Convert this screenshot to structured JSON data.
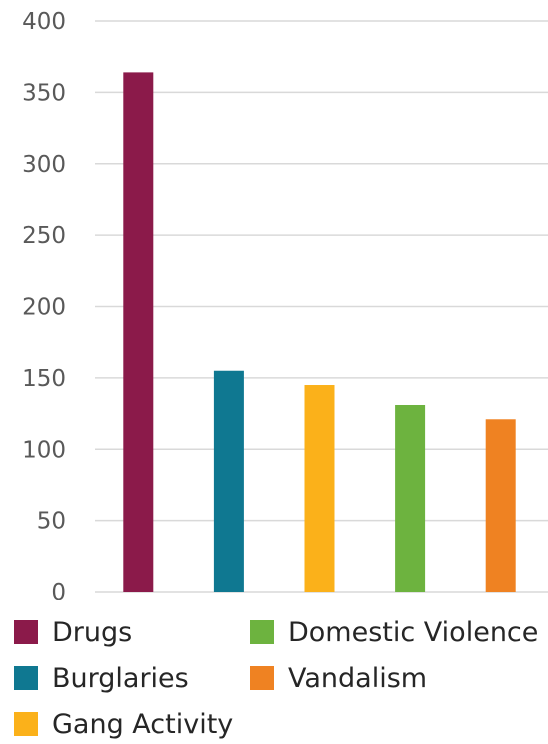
{
  "chart_data": {
    "type": "bar",
    "title": "",
    "xlabel": "",
    "ylabel": "",
    "ylim": [
      0,
      400
    ],
    "yticks": [
      "0",
      "50",
      "100",
      "150",
      "200",
      "250",
      "300",
      "350",
      "400"
    ],
    "grid": true,
    "legend_position": "bottom",
    "series": [
      {
        "name": "Drugs",
        "value": 364,
        "color": "#8b1a4a"
      },
      {
        "name": "Burglaries",
        "value": 155,
        "color": "#0f7891"
      },
      {
        "name": "Gang Activity",
        "value": 145,
        "color": "#fbb11a"
      },
      {
        "name": "Domestic Violence",
        "value": 131,
        "color": "#6db33f"
      },
      {
        "name": "Vandalism",
        "value": 121,
        "color": "#ef8222"
      }
    ]
  }
}
